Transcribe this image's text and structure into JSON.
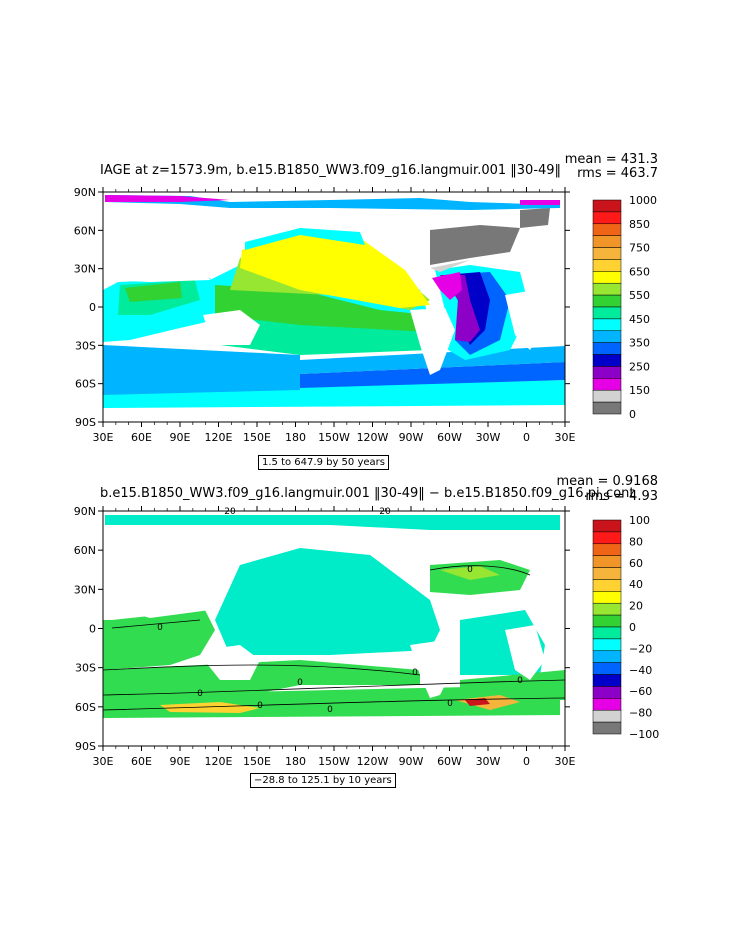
{
  "panels": [
    {
      "title": "IAGE at z=1573.9m, b.e15.B1850_WW3.f09_g16.langmuir.001 ‖30-49‖",
      "stat_mean": "mean = 431.3",
      "stat_rms": "rms = 463.7",
      "range_text": "1.5 to 647.9 by 50 years",
      "colorbar_labels": [
        "1000",
        "850",
        "750",
        "650",
        "550",
        "450",
        "350",
        "250",
        "150",
        "0"
      ],
      "colorbar_colors": [
        "#c8141a",
        "#ff1a1a",
        "#f06418",
        "#f09628",
        "#f5b43c",
        "#ffd232",
        "#ffff00",
        "#96e632",
        "#32d232",
        "#00eb9b",
        "#00ffff",
        "#00b4ff",
        "#0064ff",
        "#0000c8",
        "#8c00c8",
        "#e600e6",
        "#d2d2d2",
        "#787878"
      ]
    },
    {
      "title": "b.e15.B1850_WW3.f09_g16.langmuir.001 ‖30-49‖ − b.e15.B1850.f09_g16.pi_cont",
      "stat_mean": "mean = 0.9168",
      "stat_rms": "rms = 4.93",
      "range_text": "−28.8 to 125.1 by 10 years",
      "colorbar_labels": [
        "100",
        "80",
        "60",
        "40",
        "20",
        "0",
        "−20",
        "−40",
        "−60",
        "−80",
        "−100"
      ],
      "colorbar_colors": [
        "#c8141a",
        "#ff1a1a",
        "#f06418",
        "#f09628",
        "#f5b43c",
        "#ffd232",
        "#ffff00",
        "#96e632",
        "#32d232",
        "#00eb9b",
        "#00ffff",
        "#00b4ff",
        "#0064ff",
        "#0000c8",
        "#8c00c8",
        "#e600e6",
        "#d2d2d2",
        "#787878"
      ],
      "contour_labels": [
        "20",
        "20",
        "0",
        "0",
        "0",
        "0",
        "0",
        "0",
        "0",
        "0",
        "0"
      ]
    }
  ],
  "axis": {
    "lat_labels": [
      "90N",
      "60N",
      "30N",
      "0",
      "30S",
      "60S",
      "90S"
    ],
    "lon_labels": [
      "30E",
      "60E",
      "90E",
      "120E",
      "150E",
      "180",
      "150W",
      "120W",
      "90W",
      "60W",
      "30W",
      "0",
      "30E"
    ]
  },
  "map_colors": {
    "land": "#ffffff",
    "gray": "#787878",
    "lightgray": "#d2d2d2",
    "magenta": "#e600e6",
    "purple": "#8c00c8",
    "navy": "#0000c8",
    "blue": "#0064ff",
    "skyblue": "#00b4ff",
    "cyan": "#00ffff",
    "aqua": "#00eb9b",
    "green": "#32d232",
    "lime": "#96e632",
    "yellow": "#ffff00",
    "diff_cyan": "#00ebc8",
    "diff_green": "#32dc50",
    "diff_lime": "#78e632"
  }
}
